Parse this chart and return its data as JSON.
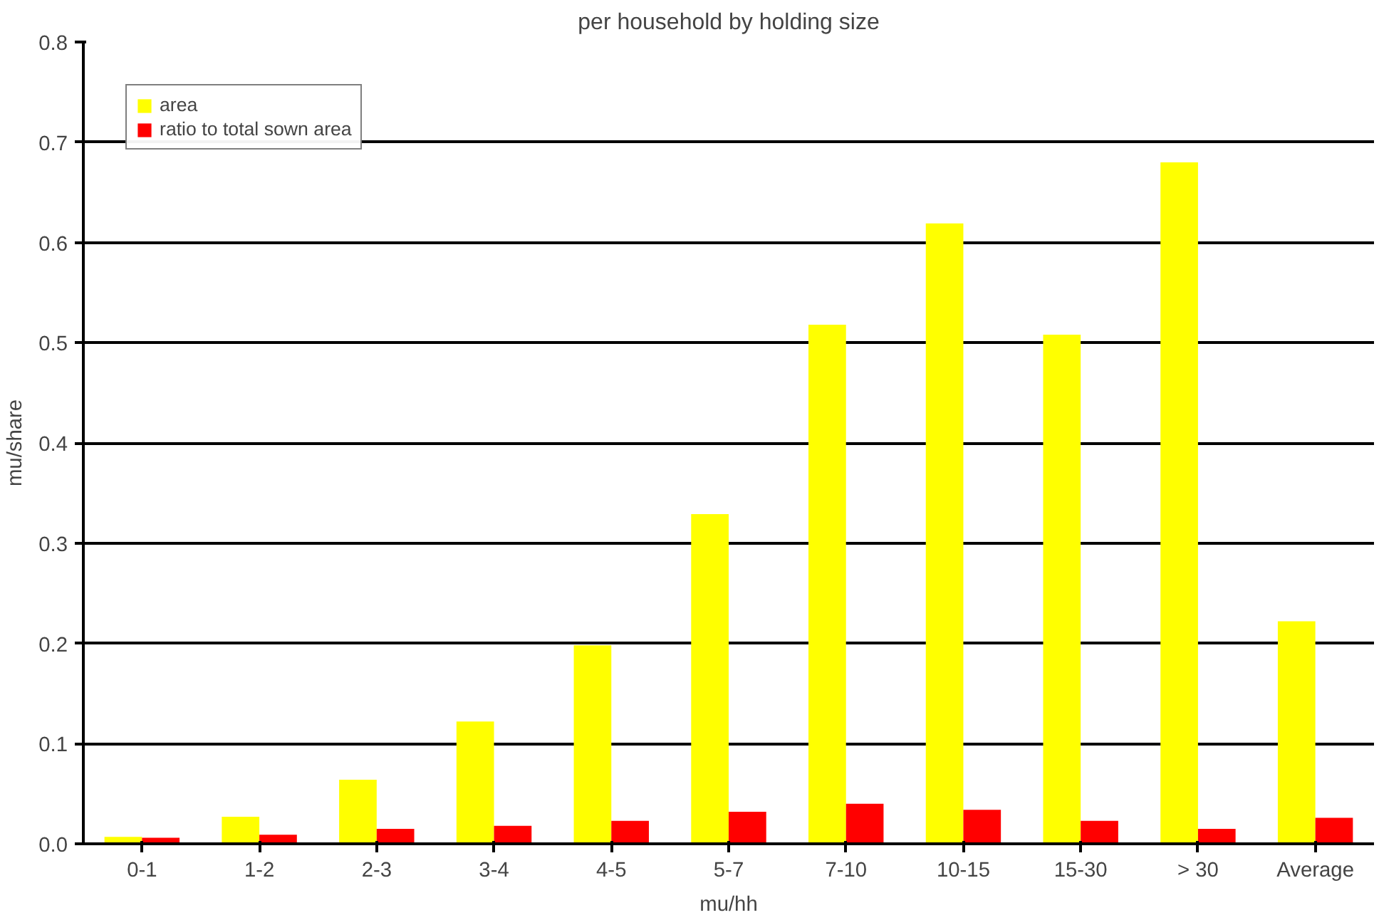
{
  "chart_data": {
    "type": "bar",
    "title": "per household by holding size",
    "xlabel": "mu/hh",
    "ylabel": "mu/share",
    "categories": [
      "0-1",
      "1-2",
      "2-3",
      "3-4",
      "4-5",
      "5-7",
      "7-10",
      "10-15",
      "15-30",
      "> 30",
      "Average"
    ],
    "series": [
      {
        "name": "area",
        "color": "#ffff00",
        "values": [
          0.007,
          0.027,
          0.064,
          0.122,
          0.198,
          0.329,
          0.518,
          0.619,
          0.508,
          0.68,
          0.222
        ]
      },
      {
        "name": "ratio to total sown area",
        "color": "#ff0000",
        "values": [
          0.006,
          0.009,
          0.015,
          0.018,
          0.023,
          0.032,
          0.04,
          0.034,
          0.023,
          0.015,
          0.026
        ]
      }
    ],
    "ylim": [
      0,
      0.8
    ],
    "yticks": [
      {
        "value": 0,
        "label": "0.0"
      },
      0.1,
      0.2,
      0.3,
      0.4,
      0.5,
      0.6,
      0.7,
      0.8
    ],
    "grid": "y",
    "legend": "top left"
  }
}
